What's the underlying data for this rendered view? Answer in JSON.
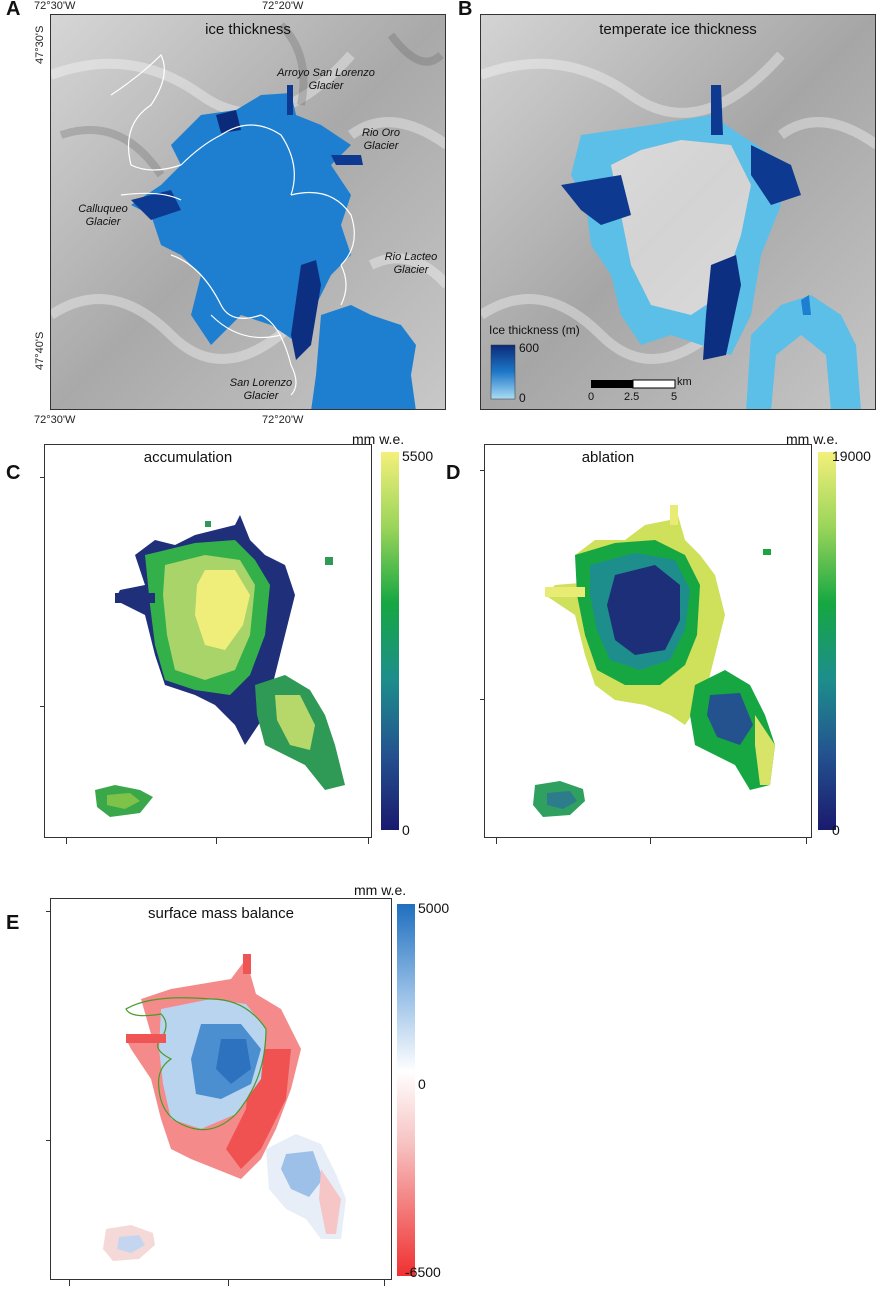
{
  "panels": {
    "A": {
      "letter": "A",
      "title": "ice thickness",
      "coords": {
        "top_left": "72°30'W",
        "top_mid": "72°20'W",
        "bottom_left": "72°30'W",
        "bottom_mid": "72°20'W",
        "left_top": "47°30'S",
        "left_bottom": "47°40'S"
      },
      "glaciers": {
        "arroyo": [
          "Arroyo San Lorenzo",
          "Glacier"
        ],
        "rio_oro": [
          "Rio Oro",
          "Glacier"
        ],
        "calluqueo": [
          "Calluqueo",
          "Glacier"
        ],
        "rio_lacteo": [
          "Rio Lacteo",
          "Glacier"
        ],
        "san_lorenzo": [
          "San Lorenzo",
          "Glacier"
        ]
      }
    },
    "B": {
      "letter": "B",
      "title": "temperate ice thickness",
      "legend_title": "Ice thickness (m)",
      "legend_max": "600",
      "legend_min": "0",
      "scale_unit": "km",
      "scale_ticks": [
        "0",
        "2.5",
        "5"
      ]
    },
    "C": {
      "letter": "C",
      "title": "accumulation",
      "unit": "mm w.e.",
      "cbar_max": "5500",
      "cbar_min": "0"
    },
    "D": {
      "letter": "D",
      "title": "ablation",
      "unit": "mm w.e.",
      "cbar_max": "19000",
      "cbar_min": "0"
    },
    "E": {
      "letter": "E",
      "title": "surface mass balance",
      "unit": "mm w.e.",
      "cbar_max": "5000",
      "cbar_mid": "0",
      "cbar_min": "-6500"
    }
  },
  "colors": {
    "ice_light": "#5bbfe8",
    "ice_mid": "#1e78c8",
    "ice_dark": "#0b2a7a",
    "viridis_low": "#1a1a6e",
    "viridis_mid": "#12a53a",
    "viridis_high": "#f3f07a",
    "smb_pos": "#1f6fbf",
    "smb_neg": "#f03030"
  }
}
